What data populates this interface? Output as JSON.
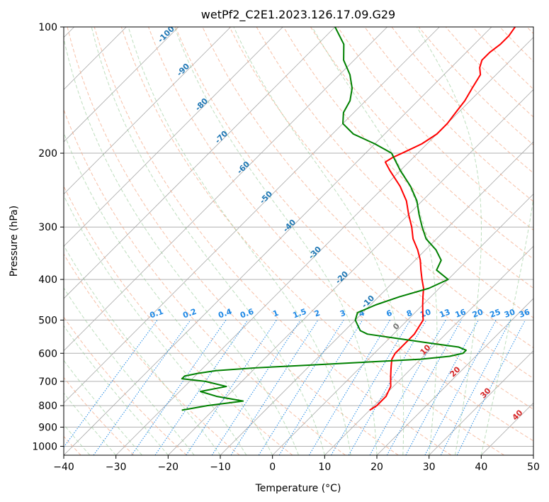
{
  "chart_data": {
    "type": "line",
    "title": "wetPf2_C2E1.2023.126.17.09.G29",
    "xlabel": "Temperature (°C)",
    "ylabel": "Pressure (hPa)",
    "xlim": [
      -40,
      50
    ],
    "ylim": [
      1050,
      100
    ],
    "y_scale": "log",
    "skew": true,
    "grid": true,
    "x_ticks": [
      "−40",
      "−30",
      "−20",
      "−10",
      "0",
      "10",
      "20",
      "30",
      "40",
      "50"
    ],
    "y_ticks": [
      "100",
      "200",
      "300",
      "400",
      "500",
      "600",
      "700",
      "800",
      "900",
      "1000"
    ],
    "x_tick_values": [
      -40,
      -30,
      -20,
      -10,
      0,
      10,
      20,
      30,
      40,
      50
    ],
    "y_tick_values": [
      100,
      200,
      300,
      400,
      500,
      600,
      700,
      800,
      900,
      1000
    ],
    "series": [
      {
        "color": "#ff0000",
        "pressure": [
          820,
          800,
          780,
          760,
          740,
          720,
          700,
          680,
          660,
          640,
          620,
          600,
          580,
          560,
          540,
          520,
          500,
          480,
          460,
          440,
          420,
          400,
          380,
          360,
          340,
          320,
          300,
          280,
          260,
          240,
          220,
          210,
          205,
          200,
          195,
          190,
          185,
          180,
          170,
          160,
          150,
          140,
          130,
          125,
          120,
          115,
          110,
          105,
          100
        ],
        "temperature": [
          10,
          10.5,
          10.5,
          10.5,
          10,
          9.5,
          8.5,
          7.5,
          6.5,
          5.5,
          4.5,
          4,
          4,
          4,
          4,
          3.5,
          3,
          1.5,
          0,
          -1.5,
          -3,
          -5,
          -7,
          -9,
          -11.5,
          -14.5,
          -17,
          -20,
          -23,
          -27,
          -32,
          -34.5,
          -34,
          -33,
          -32,
          -31,
          -30.5,
          -30,
          -30,
          -30.5,
          -31,
          -32,
          -33,
          -34.5,
          -35.5,
          -35.5,
          -35,
          -35,
          -35.5
        ]
      },
      {
        "color": "#008000",
        "pressure": [
          820,
          800,
          780,
          760,
          740,
          720,
          700,
          690,
          680,
          670,
          660,
          650,
          640,
          630,
          620,
          610,
          600,
          590,
          580,
          570,
          560,
          550,
          540,
          530,
          520,
          500,
          480,
          460,
          440,
          420,
          400,
          380,
          360,
          340,
          320,
          300,
          280,
          260,
          240,
          220,
          200,
          190,
          180,
          170,
          160,
          150,
          140,
          130,
          120,
          110,
          100
        ],
        "temperature": [
          -26,
          -22,
          -16,
          -22,
          -26,
          -22,
          -27,
          -32,
          -32,
          -30,
          -27,
          -20,
          -10,
          0,
          10,
          15,
          17,
          17,
          15,
          10,
          5,
          0,
          -5,
          -7,
          -8,
          -10,
          -11,
          -9,
          -6,
          -2,
          0,
          -4,
          -5,
          -8,
          -12,
          -15,
          -18,
          -21,
          -25,
          -30,
          -35,
          -40,
          -46,
          -50,
          -52,
          -53,
          -55,
          -58,
          -62,
          -65,
          -70
        ]
      }
    ],
    "dry_adiabat_labels": [
      "-100",
      "-90",
      "-80",
      "-70",
      "-60",
      "-50",
      "-40",
      "-30",
      "-20",
      "-10",
      "0",
      "10",
      "20",
      "30",
      "40"
    ],
    "mixing_ratio_labels": [
      "0.1",
      "0.2",
      "0.4",
      "0.6",
      "1",
      "1.5",
      "2",
      "3",
      "4",
      "6",
      "8",
      "10",
      "13",
      "16",
      "20",
      "25",
      "30",
      "36"
    ]
  }
}
